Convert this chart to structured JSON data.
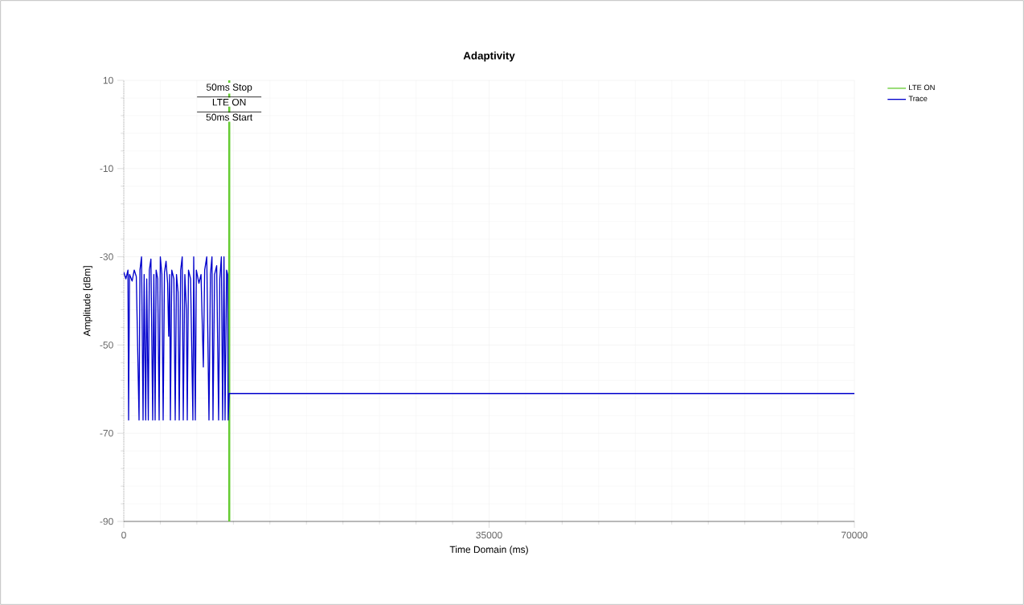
{
  "chart_data": {
    "type": "line",
    "title": "Adaptivity",
    "xlabel": "Time Domain (ms)",
    "ylabel": "Amplitude [dBm]",
    "xlim": [
      0,
      70000
    ],
    "ylim": [
      -90,
      10
    ],
    "xticks": [
      0,
      35000,
      70000
    ],
    "yticks": [
      -90,
      -70,
      -50,
      -30,
      -10,
      10
    ],
    "grid": true,
    "legend": "top right",
    "series": [
      {
        "name": "Trace",
        "color": "#0000cc",
        "x": [
          0,
          200,
          400,
          462,
          550,
          800,
          1000,
          1200,
          1463,
          1550,
          1700,
          1848,
          1950,
          2100,
          2200,
          2350,
          2450,
          2600,
          2772,
          2880,
          3003,
          3100,
          3250,
          3388,
          3500,
          3650,
          3773,
          3900,
          4050,
          4200,
          4300,
          4400,
          4466,
          4600,
          4800,
          4928,
          5050,
          5200,
          5313,
          5450,
          5600,
          5698,
          5850,
          6000,
          6083,
          6200,
          6400,
          6622,
          6700,
          6853,
          6950,
          7200,
          7400,
          7623,
          7750,
          7950,
          8162,
          8300,
          8450,
          8547,
          8700,
          8900,
          9086,
          9200,
          9350,
          9471,
          9600,
          9702,
          9850,
          9950,
          10000,
          10100,
          70000
        ],
        "values": [
          -33.5,
          -35,
          -33,
          -67,
          -34,
          -35.5,
          -33,
          -34.5,
          -67,
          -33,
          -30,
          -67,
          -34,
          -67,
          -35,
          -67,
          -33,
          -30.5,
          -67,
          -34,
          -67,
          -33,
          -35,
          -67,
          -30,
          -34,
          -67,
          -33.5,
          -31,
          -36,
          -48,
          -34,
          -67,
          -33,
          -35,
          -67,
          -34,
          -38,
          -67,
          -33,
          -30,
          -67,
          -34,
          -42,
          -67,
          -33,
          -35,
          -67,
          -30,
          -67,
          -33,
          -36,
          -34,
          -55,
          -33,
          -30,
          -67,
          -34,
          -30,
          -67,
          -34,
          -32,
          -67,
          -35,
          -30,
          -67,
          -30,
          -67,
          -33,
          -34,
          -67,
          -61,
          -61
        ]
      }
    ],
    "ref_lines": [
      {
        "axis": "x",
        "value": 10100,
        "label": "LTE ON",
        "color": "#66cc33"
      }
    ],
    "annotations": [
      "50ms Stop",
      "50ms Start"
    ]
  }
}
